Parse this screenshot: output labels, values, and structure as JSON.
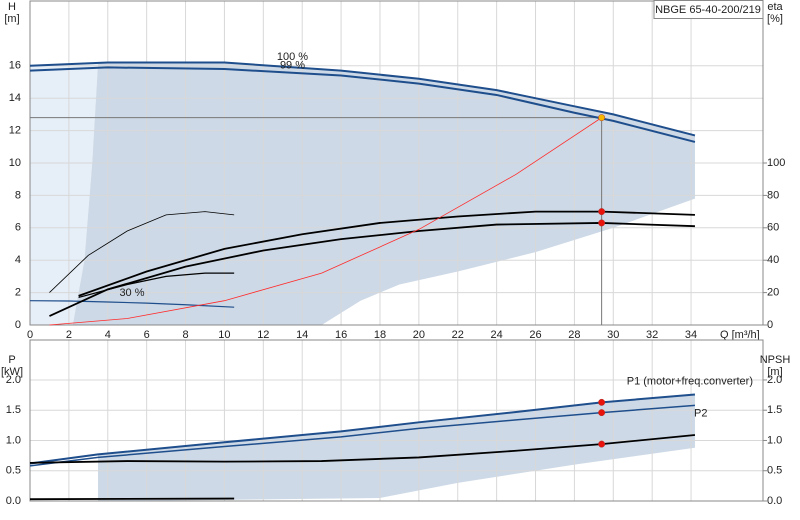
{
  "header": "NBGE 65-40-200/219",
  "chart_data": [
    {
      "type": "line",
      "ylabel": "H",
      "yunit": "[m]",
      "y2label": "eta",
      "y2unit": "[%]",
      "xlabel": "Q [m³/h]",
      "xlim": [
        0,
        37.7
      ],
      "xticks": [
        0,
        2,
        4,
        6,
        8,
        10,
        12,
        14,
        16,
        18,
        20,
        22,
        24,
        26,
        28,
        30,
        32,
        34
      ],
      "ylim": [
        0,
        20
      ],
      "yticks": [
        0,
        2,
        4,
        6,
        8,
        10,
        12,
        14,
        16
      ],
      "y2lim": [
        0,
        200
      ],
      "y2ticks": [
        0,
        20,
        40,
        60,
        80,
        100
      ],
      "grid": true,
      "envelope": {
        "color": "#cdd9e6",
        "x": [
          3.5,
          6,
          10,
          16,
          20,
          24,
          28,
          30,
          34.2,
          34.2,
          30,
          26,
          22,
          19,
          17,
          15,
          2.2,
          2.8,
          3.2
        ],
        "values": [
          16.2,
          16.25,
          16.2,
          15.7,
          15.2,
          14.5,
          13.5,
          13.0,
          11.7,
          7.8,
          6.0,
          4.5,
          3.3,
          2.5,
          1.5,
          0,
          0,
          4,
          10
        ]
      },
      "envelope_light": {
        "color": "#e6eef7",
        "x": [
          0,
          0,
          3.5,
          3.2,
          2.8,
          2.2
        ],
        "values": [
          0,
          16.0,
          16.2,
          10,
          4,
          0
        ]
      },
      "series": [
        {
          "name": "100 %",
          "color": "#1f4e8c",
          "width": 2,
          "x": [
            0,
            4,
            10,
            16,
            20,
            24,
            28,
            30,
            34.2
          ],
          "values": [
            16.0,
            16.2,
            16.2,
            15.7,
            15.2,
            14.5,
            13.5,
            13.0,
            11.7
          ]
        },
        {
          "name": "99 %",
          "color": "#1f4e8c",
          "width": 2,
          "x": [
            0,
            4,
            10,
            16,
            20,
            24,
            28,
            30,
            34.2
          ],
          "values": [
            15.7,
            15.9,
            15.8,
            15.4,
            14.9,
            14.2,
            13.1,
            12.6,
            11.3
          ]
        },
        {
          "name": "30 %",
          "color": "#1f4e8c",
          "width": 1.2,
          "x": [
            0,
            2,
            4,
            6,
            8,
            10.5
          ],
          "values": [
            1.5,
            1.48,
            1.42,
            1.35,
            1.25,
            1.1
          ]
        },
        {
          "color": "#000000",
          "width": 1.8,
          "axis": "y2",
          "x": [
            2.5,
            6,
            10,
            14,
            18,
            22,
            26,
            29.4,
            34.2
          ],
          "values": [
            18,
            33,
            47,
            56,
            63,
            67,
            70,
            70,
            68
          ]
        },
        {
          "color": "#000000",
          "width": 1.8,
          "axis": "y2",
          "x": [
            1,
            4,
            8,
            12,
            16,
            20,
            24,
            29.4,
            34.2
          ],
          "values": [
            5.5,
            22,
            36,
            46,
            53,
            58,
            62,
            63,
            61
          ]
        },
        {
          "color": "#000000",
          "width": 1.2,
          "axis": "y2",
          "x": [
            2.5,
            5,
            7,
            9,
            10.5
          ],
          "values": [
            17,
            25,
            30,
            32,
            32
          ]
        },
        {
          "color": "#000000",
          "width": 0.8,
          "axis": "y2",
          "x": [
            1,
            3,
            5,
            7,
            9,
            10.5
          ],
          "values": [
            20,
            43,
            58,
            68,
            70,
            68
          ]
        },
        {
          "color": "#ff2a2a",
          "width": 0.8,
          "x": [
            1,
            5,
            10,
            15,
            20,
            25,
            29.4
          ],
          "values": [
            0,
            0.4,
            1.5,
            3.2,
            5.9,
            9.3,
            12.8
          ]
        }
      ],
      "points": [
        {
          "x": 29.4,
          "value": 12.8,
          "color": "#f5b700"
        },
        {
          "x": 29.4,
          "value": 70,
          "axis": "y2",
          "color": "#e8140c"
        },
        {
          "x": 29.4,
          "value": 63,
          "axis": "y2",
          "color": "#e8140c"
        }
      ]
    },
    {
      "type": "line",
      "ylabel": "P",
      "yunit": "[kW]",
      "y2label": "NPSH",
      "y2unit": "[m]",
      "xlim": [
        0,
        37.7
      ],
      "ylim": [
        0,
        2.66
      ],
      "yticks": [
        {
          "value": 0,
          "label": "0.0"
        },
        0.5,
        {
          "value": 1,
          "label": "1.0"
        },
        1.5,
        {
          "value": 2,
          "label": "2.0"
        }
      ],
      "y2lim": [
        0,
        2.66
      ],
      "y2ticks": [
        {
          "value": 0,
          "label": "0.0"
        },
        0.5,
        {
          "value": 1,
          "label": "1.0"
        },
        1.5,
        {
          "value": 2,
          "label": "2.0"
        }
      ],
      "grid": true,
      "envelope": {
        "color": "#cdd9e6",
        "x": [
          3.5,
          10,
          16,
          20,
          25,
          29.4,
          34.2,
          34.2,
          28,
          22,
          18,
          5,
          3.5
        ],
        "values": [
          0.77,
          0.97,
          1.15,
          1.3,
          1.47,
          1.63,
          1.76,
          0.88,
          0.6,
          0.3,
          0.05,
          0,
          0
        ]
      },
      "series": [
        {
          "name": "P1 (motor+freq.converter)",
          "color": "#1f4e8c",
          "width": 2,
          "x": [
            0,
            3.5,
            10,
            16,
            20,
            25,
            29.4,
            34.2
          ],
          "values": [
            0.62,
            0.77,
            0.97,
            1.15,
            1.3,
            1.47,
            1.63,
            1.76
          ]
        },
        {
          "name": "P2",
          "color": "#1f4e8c",
          "width": 1.5,
          "x": [
            0,
            3.5,
            10,
            16,
            20,
            25,
            29.4,
            34.2
          ],
          "values": [
            0.58,
            0.72,
            0.9,
            1.06,
            1.2,
            1.34,
            1.46,
            1.58
          ]
        },
        {
          "color": "#000000",
          "width": 1.8,
          "axis": "y2",
          "x": [
            0,
            5,
            10,
            15,
            20,
            25,
            29.4,
            34.2
          ],
          "values": [
            0.63,
            0.66,
            0.65,
            0.66,
            0.72,
            0.83,
            0.94,
            1.09
          ]
        },
        {
          "color": "#000000",
          "width": 1.8,
          "x": [
            0,
            10.5
          ],
          "values": [
            0.03,
            0.04
          ]
        }
      ],
      "points": [
        {
          "x": 29.4,
          "value": 1.63,
          "color": "#e8140c"
        },
        {
          "x": 29.4,
          "value": 1.46,
          "color": "#e8140c"
        },
        {
          "x": 29.4,
          "value": 0.94,
          "axis": "y2",
          "color": "#e8140c"
        }
      ]
    }
  ]
}
